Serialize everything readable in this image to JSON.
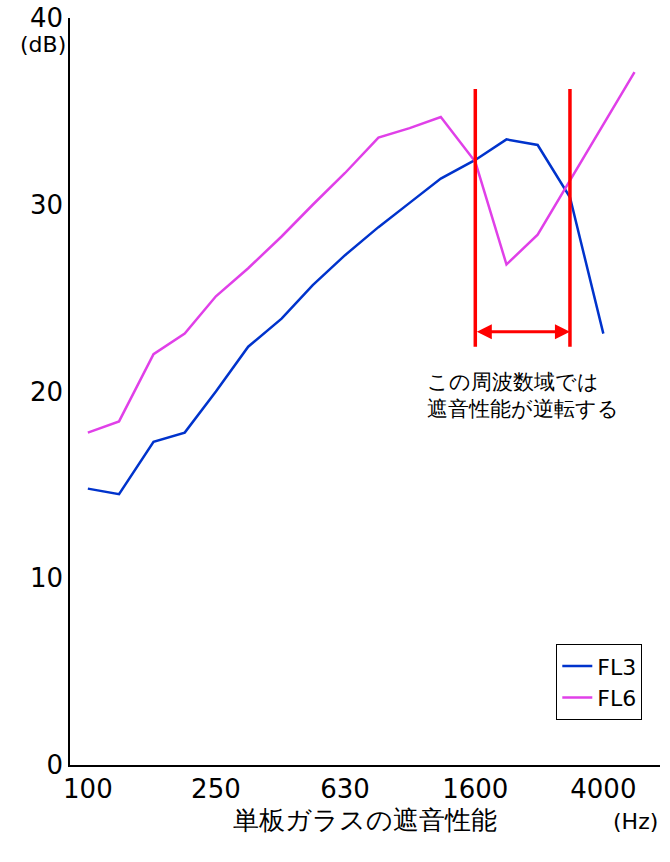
{
  "chart_data": {
    "type": "line",
    "x_label": "単板ガラスの遮音性能",
    "x_unit": "(Hz)",
    "y_unit": "(dB)",
    "log": "x",
    "grid": false,
    "legend": "lower right",
    "xlim": [
      88,
      6000
    ],
    "xticks": [
      100,
      250,
      630,
      1600,
      4000
    ],
    "ylim": [
      0,
      40
    ],
    "yticks": [
      0,
      10,
      20,
      30,
      40
    ],
    "x": [
      100,
      125,
      160,
      200,
      250,
      315,
      400,
      500,
      630,
      800,
      1000,
      1250,
      1600,
      2000,
      2500,
      3150,
      4000,
      5000
    ],
    "series": [
      {
        "name": "FL3",
        "color": "#0033cc",
        "values": [
          14.8,
          14.5,
          17.3,
          17.8,
          20.0,
          22.4,
          23.9,
          25.7,
          27.3,
          28.8,
          30.1,
          31.4,
          32.4,
          33.5,
          33.2,
          30.4,
          23.1,
          null
        ]
      },
      {
        "name": "FL6",
        "color": "#e040e8",
        "values": [
          17.8,
          18.4,
          22.0,
          23.1,
          25.1,
          26.6,
          28.3,
          30.0,
          31.7,
          33.6,
          34.1,
          34.7,
          32.3,
          26.8,
          28.4,
          31.3,
          34.3,
          37.1
        ]
      }
    ],
    "annotations": [
      {
        "text": "この周波数域では\n遮音性能が逆転する",
        "x": [
          1600,
          3150
        ],
        "color": "#ff0000"
      }
    ]
  }
}
